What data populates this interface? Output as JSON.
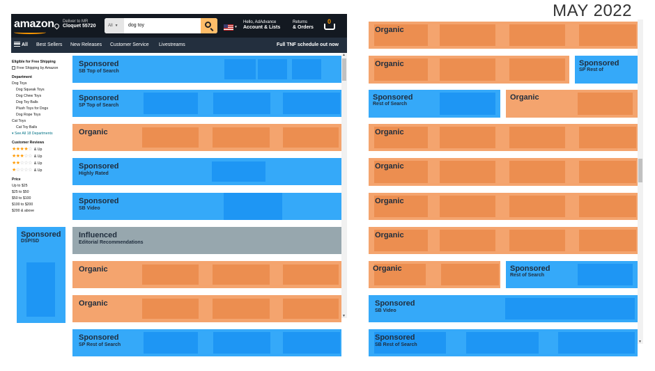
{
  "corner_title": "MAY 2022",
  "header": {
    "logo": "amazon",
    "deliver_line1": "Deliver to MR",
    "deliver_line2": "Cloquet 55720",
    "search_category": "All",
    "search_query": "dog toy",
    "account_line1": "Hello, AdAdvance",
    "account_line2": "Account & Lists",
    "returns_line1": "Returns",
    "returns_line2": "& Orders",
    "cart_count": "0"
  },
  "navbar": {
    "all": "All",
    "items": [
      "Best Sellers",
      "New Releases",
      "Customer Service",
      "Livestreams"
    ],
    "promo": "Full TNF schedule out now"
  },
  "sidebar": {
    "shipping_heading": "Eligible for Free Shipping",
    "shipping_option": "Free Shipping by Amazon",
    "department_heading": "Department",
    "departments": [
      {
        "label": "Dog Toys",
        "indent": false
      },
      {
        "label": "Dog Squeak Toys",
        "indent": true
      },
      {
        "label": "Dog Chew Toys",
        "indent": true
      },
      {
        "label": "Dog Toy Balls",
        "indent": true
      },
      {
        "label": "Plush Toys for Dogs",
        "indent": true
      },
      {
        "label": "Dog Rope Toys",
        "indent": true
      },
      {
        "label": "Cat Toys",
        "indent": false
      },
      {
        "label": "Cat Toy Balls",
        "indent": true
      }
    ],
    "see_all": "See All 18 Departments",
    "reviews_heading": "Customer Reviews",
    "reviews": [
      {
        "stars": 4,
        "label": "& Up"
      },
      {
        "stars": 3,
        "label": "& Up"
      },
      {
        "stars": 2,
        "label": "& Up"
      },
      {
        "stars": 1,
        "label": "& Up"
      }
    ],
    "price_heading": "Price",
    "prices": [
      "Up to $25",
      "$25 to $50",
      "$50 to $100",
      "$100 to $200",
      "$200 & above"
    ]
  },
  "labels": {
    "sponsored": "Sponsored",
    "organic": "Organic",
    "influenced": "Influenced"
  },
  "left_blocks": [
    {
      "kind": "sponsored",
      "title": "Sponsored",
      "sub": "SB Top of Search"
    },
    {
      "kind": "sponsored",
      "title": "Sponsored",
      "sub": "SP Top of Search"
    },
    {
      "kind": "organic",
      "title": "Organic",
      "sub": ""
    },
    {
      "kind": "sponsored",
      "title": "Sponsored",
      "sub": "Highly Rated"
    },
    {
      "kind": "sponsored",
      "title": "Sponsored",
      "sub": "SB Video"
    },
    {
      "kind": "influenced",
      "title": "Influenced",
      "sub": "Editorial Recommendations"
    },
    {
      "kind": "organic",
      "title": "Organic",
      "sub": ""
    },
    {
      "kind": "organic",
      "title": "Organic",
      "sub": ""
    },
    {
      "kind": "sponsored",
      "title": "Sponsored",
      "sub": "SP Rest of Search"
    }
  ],
  "dsp_block": {
    "title": "Sponsored",
    "sub": "DSP/SD"
  },
  "right_blocks": [
    {
      "kind": "organic",
      "title": "Organic",
      "sub": ""
    },
    {
      "kind": "organic",
      "title": "Organic",
      "sub": ""
    },
    {
      "kind": "sponsored",
      "title": "Sponsored",
      "sub": "SP Rest of"
    },
    {
      "kind": "sponsored",
      "title": "Sponsored",
      "sub": "Rest of Search"
    },
    {
      "kind": "organic",
      "title": "Organic",
      "sub": ""
    },
    {
      "kind": "organic",
      "title": "Organic",
      "sub": ""
    },
    {
      "kind": "organic",
      "title": "Organic",
      "sub": ""
    },
    {
      "kind": "organic",
      "title": "Organic",
      "sub": ""
    },
    {
      "kind": "organic",
      "title": "Organic",
      "sub": ""
    },
    {
      "kind": "organic",
      "title": "Organic",
      "sub": ""
    },
    {
      "kind": "sponsored",
      "title": "Sponsored",
      "sub": "Rest of Search"
    },
    {
      "kind": "sponsored",
      "title": "Sponsored",
      "sub": "SB Video"
    },
    {
      "kind": "sponsored",
      "title": "Sponsored",
      "sub": "SB Rest of Search"
    }
  ]
}
